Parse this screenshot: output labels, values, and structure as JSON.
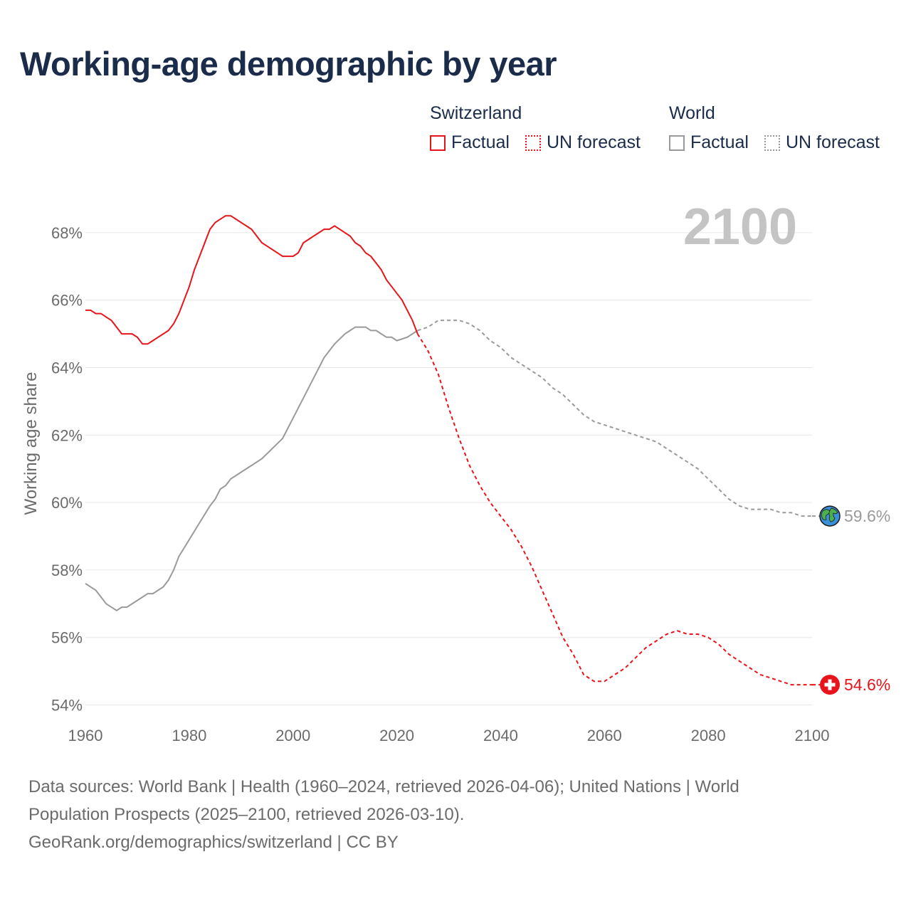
{
  "title": "Working-age demographic by year",
  "legend": {
    "switzerland": {
      "title": "Switzerland",
      "factual": "Factual",
      "forecast": "UN forecast",
      "color": "#e8141b"
    },
    "world": {
      "title": "World",
      "factual": "Factual",
      "forecast": "UN forecast",
      "color": "#9a9a9a"
    }
  },
  "footer": {
    "line1": "Data sources: World Bank | Health (1960–2024, retrieved 2026-04-06); United Nations | World",
    "line2": "Population Prospects (2025–2100, retrieved 2026-03-10).",
    "line3": "GeoRank.org/demographics/switzerland | CC BY"
  },
  "chart_data": {
    "type": "line",
    "title": "Working-age demographic by year",
    "xlabel": "",
    "ylabel": "Working age share",
    "year_label": "2100",
    "xlim": [
      1960,
      2100
    ],
    "ylim": [
      53.8,
      69.2
    ],
    "x_ticks": [
      1960,
      1980,
      2000,
      2020,
      2040,
      2060,
      2080,
      2100
    ],
    "x_tick_labels": [
      "1960",
      "1980",
      "2000",
      "2020",
      "2040",
      "2060",
      "2080",
      "2100"
    ],
    "y_ticks": [
      54,
      56,
      58,
      60,
      62,
      64,
      66,
      68
    ],
    "y_tick_labels": [
      "54%",
      "56%",
      "58%",
      "60%",
      "62%",
      "64%",
      "66%",
      "68%"
    ],
    "grid": true,
    "series": [
      {
        "name": "Switzerland",
        "color": "#e8141b",
        "end_label": "54.6%",
        "end_icon": "switzerland-flag-icon",
        "factual": {
          "x": [
            1960,
            1961,
            1962,
            1963,
            1964,
            1965,
            1966,
            1967,
            1968,
            1969,
            1970,
            1971,
            1972,
            1973,
            1974,
            1975,
            1976,
            1977,
            1978,
            1979,
            1980,
            1981,
            1982,
            1983,
            1984,
            1985,
            1986,
            1987,
            1988,
            1989,
            1990,
            1991,
            1992,
            1993,
            1994,
            1995,
            1996,
            1997,
            1998,
            1999,
            2000,
            2001,
            2002,
            2003,
            2004,
            2005,
            2006,
            2007,
            2008,
            2009,
            2010,
            2011,
            2012,
            2013,
            2014,
            2015,
            2016,
            2017,
            2018,
            2019,
            2020,
            2021,
            2022,
            2023,
            2024
          ],
          "y": [
            65.7,
            65.7,
            65.6,
            65.6,
            65.5,
            65.4,
            65.2,
            65.0,
            65.0,
            65.0,
            64.9,
            64.7,
            64.7,
            64.8,
            64.9,
            65.0,
            65.1,
            65.3,
            65.6,
            66.0,
            66.4,
            66.9,
            67.3,
            67.7,
            68.1,
            68.3,
            68.4,
            68.5,
            68.5,
            68.4,
            68.3,
            68.2,
            68.1,
            67.9,
            67.7,
            67.6,
            67.5,
            67.4,
            67.3,
            67.3,
            67.3,
            67.4,
            67.7,
            67.8,
            67.9,
            68.0,
            68.1,
            68.1,
            68.2,
            68.1,
            68.0,
            67.9,
            67.7,
            67.6,
            67.4,
            67.3,
            67.1,
            66.9,
            66.6,
            66.4,
            66.2,
            66.0,
            65.7,
            65.4,
            65.0
          ]
        },
        "forecast": {
          "x": [
            2024,
            2026,
            2028,
            2030,
            2032,
            2034,
            2036,
            2038,
            2040,
            2042,
            2044,
            2046,
            2048,
            2050,
            2052,
            2054,
            2056,
            2058,
            2060,
            2062,
            2064,
            2066,
            2068,
            2070,
            2072,
            2074,
            2076,
            2078,
            2080,
            2082,
            2084,
            2086,
            2088,
            2090,
            2092,
            2094,
            2096,
            2098,
            2100
          ],
          "y": [
            65.0,
            64.5,
            63.8,
            62.8,
            61.9,
            61.1,
            60.5,
            60.0,
            59.6,
            59.2,
            58.7,
            58.1,
            57.4,
            56.7,
            56.0,
            55.5,
            54.9,
            54.7,
            54.7,
            54.9,
            55.1,
            55.4,
            55.7,
            55.9,
            56.1,
            56.2,
            56.1,
            56.1,
            56.0,
            55.8,
            55.5,
            55.3,
            55.1,
            54.9,
            54.8,
            54.7,
            54.6,
            54.6,
            54.6
          ]
        }
      },
      {
        "name": "World",
        "color": "#9a9a9a",
        "end_label": "59.6%",
        "end_icon": "globe-icon",
        "factual": {
          "x": [
            1960,
            1962,
            1964,
            1966,
            1967,
            1968,
            1970,
            1972,
            1973,
            1974,
            1975,
            1976,
            1977,
            1978,
            1980,
            1982,
            1984,
            1985,
            1986,
            1987,
            1988,
            1990,
            1992,
            1994,
            1996,
            1998,
            2000,
            2002,
            2004,
            2006,
            2008,
            2010,
            2011,
            2012,
            2014,
            2015,
            2016,
            2017,
            2018,
            2019,
            2020,
            2022,
            2024
          ],
          "y": [
            57.6,
            57.4,
            57.0,
            56.8,
            56.9,
            56.9,
            57.1,
            57.3,
            57.3,
            57.4,
            57.5,
            57.7,
            58.0,
            58.4,
            58.9,
            59.4,
            59.9,
            60.1,
            60.4,
            60.5,
            60.7,
            60.9,
            61.1,
            61.3,
            61.6,
            61.9,
            62.5,
            63.1,
            63.7,
            64.3,
            64.7,
            65.0,
            65.1,
            65.2,
            65.2,
            65.1,
            65.1,
            65.0,
            64.9,
            64.9,
            64.8,
            64.9,
            65.1
          ]
        },
        "forecast": {
          "x": [
            2024,
            2026,
            2028,
            2030,
            2032,
            2034,
            2036,
            2038,
            2040,
            2042,
            2044,
            2046,
            2048,
            2050,
            2052,
            2054,
            2056,
            2058,
            2060,
            2062,
            2064,
            2066,
            2068,
            2070,
            2072,
            2074,
            2076,
            2078,
            2080,
            2082,
            2084,
            2086,
            2088,
            2090,
            2092,
            2094,
            2096,
            2098,
            2100
          ],
          "y": [
            65.1,
            65.2,
            65.4,
            65.4,
            65.4,
            65.3,
            65.1,
            64.8,
            64.6,
            64.3,
            64.1,
            63.9,
            63.7,
            63.4,
            63.2,
            62.9,
            62.6,
            62.4,
            62.3,
            62.2,
            62.1,
            62.0,
            61.9,
            61.8,
            61.6,
            61.4,
            61.2,
            61.0,
            60.7,
            60.4,
            60.1,
            59.9,
            59.8,
            59.8,
            59.8,
            59.7,
            59.7,
            59.6,
            59.6
          ]
        }
      }
    ]
  }
}
